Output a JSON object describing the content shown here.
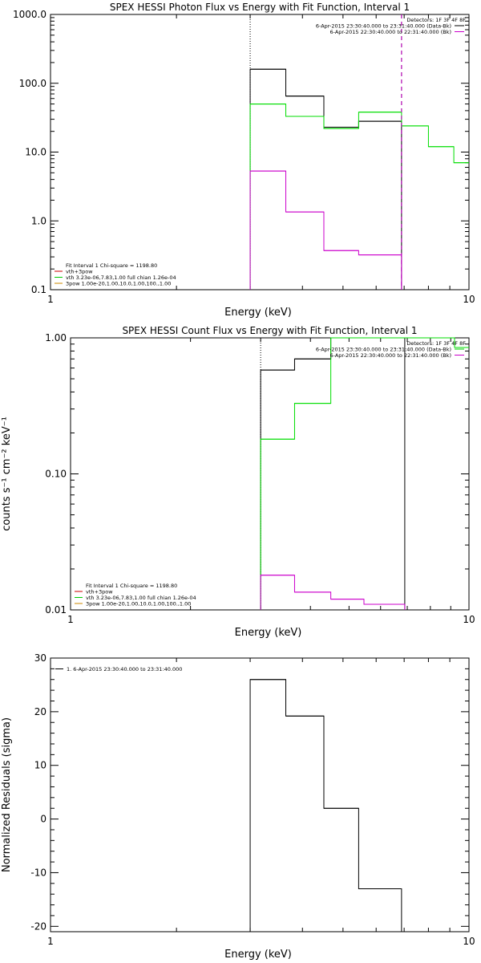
{
  "chart_data": [
    {
      "type": "line",
      "title": "SPEX HESSI Photon Flux vs Energy with Fit Function, Interval 1",
      "xlabel": "Energy (keV)",
      "ylabel": "",
      "xscale": "log",
      "yscale": "log",
      "xlim": [
        1,
        10
      ],
      "ylim": [
        0.1,
        1000
      ],
      "xticks": [
        {
          "v": 1,
          "label": "1"
        },
        {
          "v": 10,
          "label": "10"
        }
      ],
      "yticks": [
        {
          "v": 0.1,
          "label": "0.1"
        },
        {
          "v": 1,
          "label": "1.0"
        },
        {
          "v": 10,
          "label": "10.0"
        },
        {
          "v": 100,
          "label": "100.0"
        },
        {
          "v": 1000,
          "label": "1000.0"
        }
      ],
      "vlines": [
        {
          "x": 3.0,
          "style": "dotted",
          "ymax": 1000
        },
        {
          "x": 6.9,
          "style": "dashed",
          "ymax": 1000
        }
      ],
      "legend_tr": [
        {
          "text": "Detectors: 1F 3F 4F 8F",
          "color": ""
        },
        {
          "text": "6-Apr-2015 23:30:40.000 to 23:31:40.000 (Data-Bk)",
          "color": "#000000"
        },
        {
          "text": "6-Apr-2015 22:30:40.000 to 22:31:40.000 (Bk)",
          "color": "#cc00cc"
        }
      ],
      "legend_bl": [
        {
          "text": "Fit Interval 1   Chi-square = 1198.80",
          "color": ""
        },
        {
          "text": "vth+3pow",
          "color": "#cc0000"
        },
        {
          "text": "vth 3.23e-06,7.83,1.00  full chian 1.26e-04",
          "color": "#00cc00"
        },
        {
          "text": "3pow 1.00e-20,1.00,10.0,1.00,100.,1.00",
          "color": "#cc8800"
        }
      ],
      "series": [
        {
          "color": "#000000",
          "edges": [
            3.0,
            3.65,
            4.5,
            5.45,
            6.9
          ],
          "values": [
            160,
            65,
            23,
            28
          ],
          "drop_to_floor": true
        },
        {
          "color": "#00dd00",
          "edges": [
            3.0,
            3.65,
            4.5,
            5.45,
            6.9,
            8.0,
            9.2,
            10.0
          ],
          "values": [
            50,
            33,
            22,
            38,
            24,
            12,
            7
          ],
          "drop_to_floor": true,
          "floor_dotted": true
        },
        {
          "color": "#cc00cc",
          "edges": [
            3.0,
            3.65,
            4.5,
            5.45,
            6.9
          ],
          "values": [
            5.3,
            1.35,
            0.37,
            0.32
          ],
          "drop_to_floor": true,
          "end_dashed": true
        }
      ]
    },
    {
      "type": "line",
      "title": "SPEX HESSI Count Flux vs Energy with Fit Function, Interval 1",
      "xlabel": "Energy (keV)",
      "ylabel": "counts s⁻¹ cm⁻² keV⁻¹",
      "xscale": "log",
      "yscale": "log",
      "xlim": [
        1,
        10
      ],
      "ylim": [
        0.01,
        1.0
      ],
      "xticks": [
        {
          "v": 1,
          "label": "1"
        },
        {
          "v": 10,
          "label": "10"
        }
      ],
      "yticks": [
        {
          "v": 0.01,
          "label": "0.01"
        },
        {
          "v": 0.1,
          "label": "0.10"
        },
        {
          "v": 1,
          "label": "1.00"
        }
      ],
      "vlines": [
        {
          "x": 3.0,
          "style": "dotted",
          "ymax": 1.0
        }
      ],
      "legend_tr": [
        {
          "text": "Detectors: 1F 3F 4F 8F",
          "color": ""
        },
        {
          "text": "6-Apr-2015 23:30:40.000 to 23:31:40.000 (Data-Bk)",
          "color": "#00cc00"
        },
        {
          "text": "6-Apr-2015 22:30:40.000 to 22:31:40.000 (Bk)",
          "color": "#cc00cc"
        }
      ],
      "legend_bl": [
        {
          "text": "Fit Interval 1   Chi-square = 1198.80",
          "color": ""
        },
        {
          "text": "vth+3pow",
          "color": "#cc0000"
        },
        {
          "text": "vth 3.23e-06,7.83,1.00  full chian 1.26e-04",
          "color": "#00cc00"
        },
        {
          "text": "3pow 1.00e-20,1.00,10.0,1.00,100.,1.00",
          "color": "#cc8800"
        }
      ],
      "series": [
        {
          "color": "#000000",
          "edges": [
            3.0,
            3.65,
            4.5,
            5.45,
            6.9
          ],
          "values": [
            0.58,
            0.7,
            1.0,
            1.0
          ],
          "drop_to_floor": true
        },
        {
          "color": "#00dd00",
          "edges": [
            3.0,
            3.65,
            4.5,
            5.45,
            6.9,
            8.0,
            9.2,
            10.0
          ],
          "values": [
            0.18,
            0.33,
            1.0,
            1.0,
            1.0,
            1.0,
            0.85
          ],
          "drop_to_floor": true,
          "floor_dotted": true
        },
        {
          "color": "#cc00cc",
          "edges": [
            3.0,
            3.65,
            4.5,
            5.45,
            6.9
          ],
          "values": [
            0.018,
            0.0135,
            0.012,
            0.011
          ],
          "drop_to_floor": true
        }
      ]
    },
    {
      "type": "line",
      "title": "",
      "xlabel": "Energy (keV)",
      "ylabel": "Normalized Residuals (sigma)",
      "xscale": "log",
      "yscale": "linear",
      "xlim": [
        1,
        10
      ],
      "ylim": [
        -21,
        30
      ],
      "xticks": [
        {
          "v": 1,
          "label": "1"
        },
        {
          "v": 10,
          "label": "10"
        }
      ],
      "yticks": [
        {
          "v": -20,
          "label": "-20"
        },
        {
          "v": -10,
          "label": "-10"
        },
        {
          "v": 0,
          "label": "0"
        },
        {
          "v": 10,
          "label": "10"
        },
        {
          "v": 20,
          "label": "20"
        },
        {
          "v": 30,
          "label": "30"
        }
      ],
      "vlines": [],
      "legend_tl": [
        {
          "text": "1. 6-Apr-2015 23:30:40.000 to 23:31:40.000",
          "color": "#000000"
        }
      ],
      "series": [
        {
          "color": "#000000",
          "edges": [
            3.0,
            3.65,
            4.5,
            5.45,
            6.9
          ],
          "values": [
            26,
            19.2,
            2.0,
            -13
          ],
          "drop_to_floor": true
        }
      ]
    }
  ]
}
